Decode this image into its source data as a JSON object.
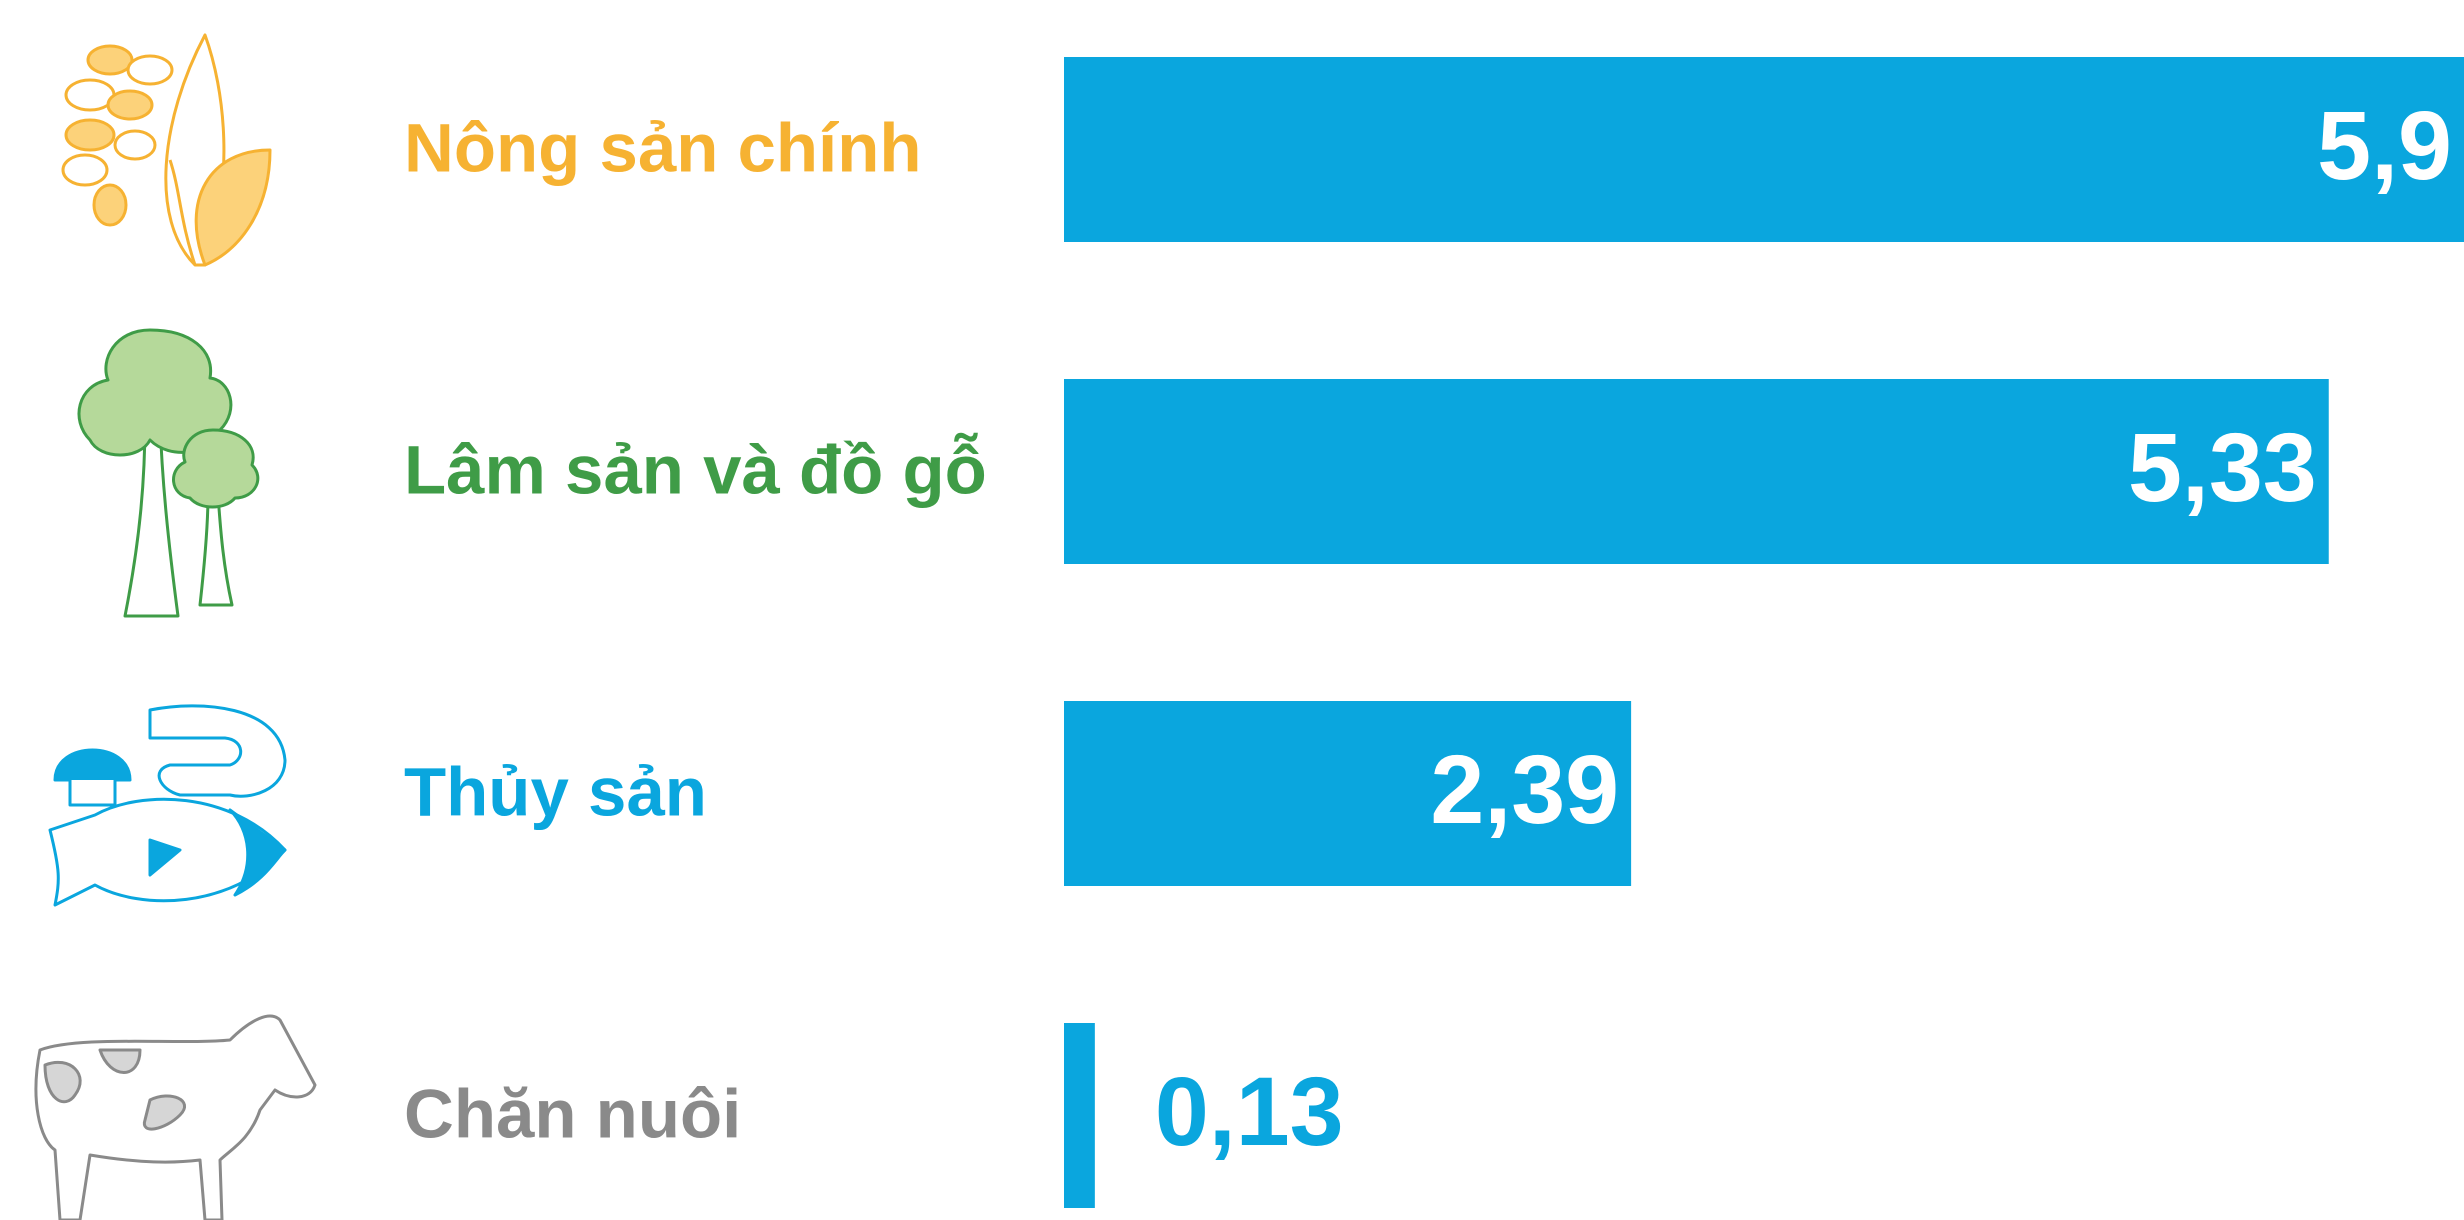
{
  "chart_data": {
    "type": "bar",
    "orientation": "horizontal",
    "categories": [
      "Nông sản chính",
      "Lâm sản và đồ gỗ",
      "Thủy sản",
      "Chăn nuôi"
    ],
    "values": [
      5.9,
      5.33,
      2.39,
      0.13
    ],
    "value_labels": [
      "5,9",
      "5,33",
      "2,39",
      "0,13"
    ],
    "color": "#0aa6de",
    "label_colors": [
      "#f6b232",
      "#3f9c47",
      "#0aa6de",
      "#8a8a8a"
    ]
  }
}
